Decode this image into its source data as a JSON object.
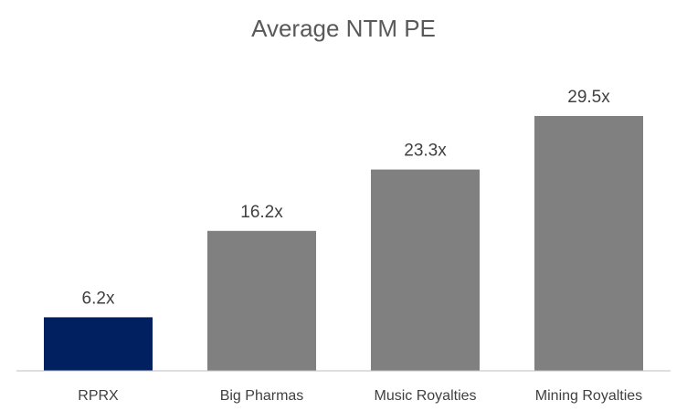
{
  "chart_data": {
    "type": "bar",
    "title": "Average NTM PE",
    "xlabel": "",
    "ylabel": "",
    "categories": [
      "RPRX",
      "Big Pharmas",
      "Music Royalties",
      "Mining Royalties"
    ],
    "values": [
      6.2,
      16.2,
      23.3,
      29.5
    ],
    "data_labels": [
      "6.2x",
      "16.2x",
      "23.3x",
      "29.5x"
    ],
    "ylim": [
      0,
      32
    ],
    "grid": false,
    "legend": "none",
    "colors": [
      "#002060",
      "#808080",
      "#808080",
      "#808080"
    ],
    "axis_color": "#bfbfbf"
  }
}
